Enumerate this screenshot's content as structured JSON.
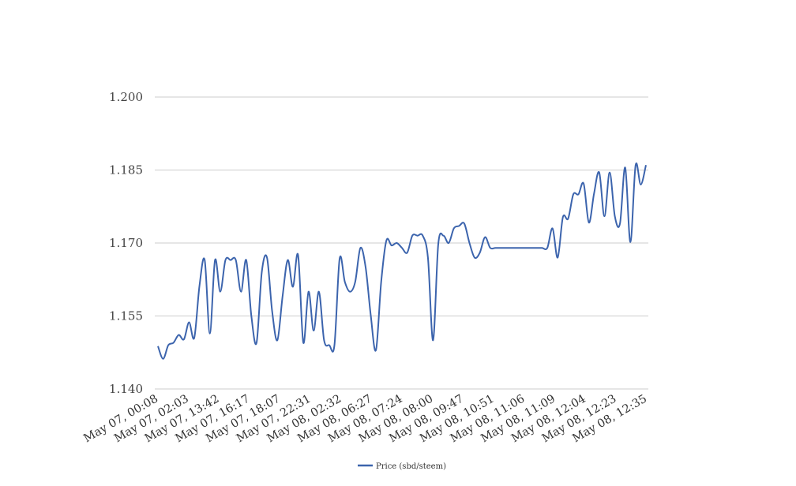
{
  "chart_data": {
    "type": "line",
    "title": "",
    "xlabel": "",
    "ylabel": "",
    "ylim": [
      1.14,
      1.2
    ],
    "yticks": [
      "1.140",
      "1.155",
      "1.170",
      "1.185",
      "1.200"
    ],
    "xtick_labels": [
      "May 07, 00:08",
      "May 07, 02:03",
      "May 07, 13:42",
      "May 07, 16:17",
      "May 07, 18:07",
      "May 07, 22:31",
      "May 08, 02:32",
      "May 08, 06:27",
      "May 08, 07:24",
      "May 08, 08:00",
      "May 08, 09:47",
      "May 08, 10:51",
      "May 08, 11:06",
      "May 08, 11:09",
      "May 08, 12:04",
      "May 08, 12:23",
      "May 08, 12:35"
    ],
    "grid": "horizontal",
    "legend_position": "bottom",
    "series": [
      {
        "name": "Price (sbd/steem)",
        "color": "#3c64ad",
        "values": [
          1.1488,
          1.1462,
          1.149,
          1.1495,
          1.1511,
          1.1502,
          1.1537,
          1.1505,
          1.1612,
          1.1665,
          1.1514,
          1.1665,
          1.16,
          1.1665,
          1.1665,
          1.1665,
          1.16,
          1.1665,
          1.155,
          1.1495,
          1.164,
          1.167,
          1.156,
          1.15,
          1.159,
          1.1665,
          1.161,
          1.1675,
          1.1495,
          1.16,
          1.152,
          1.16,
          1.15,
          1.149,
          1.149,
          1.1668,
          1.162,
          1.16,
          1.162,
          1.169,
          1.165,
          1.155,
          1.148,
          1.162,
          1.1705,
          1.1695,
          1.17,
          1.169,
          1.168,
          1.1715,
          1.1715,
          1.1715,
          1.167,
          1.15,
          1.1698,
          1.1715,
          1.17,
          1.173,
          1.1735,
          1.174,
          1.17,
          1.167,
          1.168,
          1.1712,
          1.169,
          1.169,
          1.169,
          1.169,
          1.169,
          1.169,
          1.169,
          1.169,
          1.169,
          1.169,
          1.169,
          1.169,
          1.173,
          1.167,
          1.1753,
          1.175,
          1.18,
          1.18,
          1.1822,
          1.1742,
          1.1802,
          1.1845,
          1.1755,
          1.1845,
          1.1755,
          1.174,
          1.1855,
          1.1702,
          1.186,
          1.182,
          1.186
        ]
      }
    ]
  }
}
